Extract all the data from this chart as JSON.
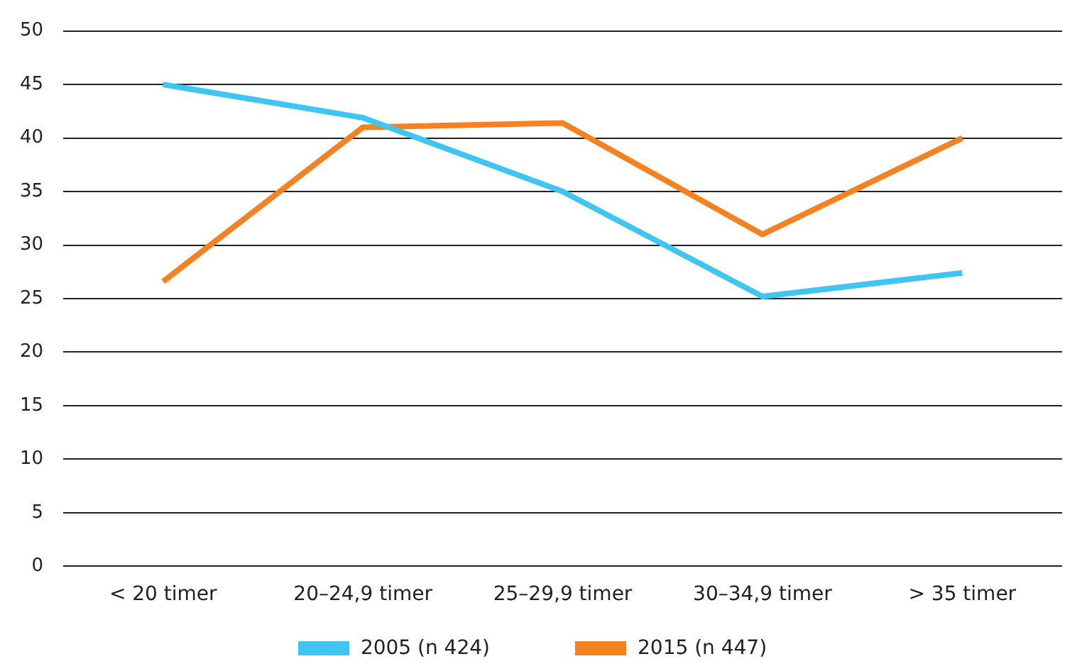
{
  "chart_data": {
    "type": "line",
    "categories": [
      "< 20 timer",
      "20–24,9 timer",
      "25–29,9 timer",
      "30–34,9 timer",
      "> 35 timer"
    ],
    "series": [
      {
        "name": "2005 (n 424)",
        "color": "#3ec6f0",
        "values": [
          45,
          41.9,
          35,
          25.2,
          27.4
        ]
      },
      {
        "name": "2015 (n 447)",
        "color": "#f58220",
        "values": [
          26.6,
          41,
          41.4,
          31,
          40
        ]
      }
    ],
    "ylim": [
      0,
      50
    ],
    "yticks": [
      0,
      5,
      10,
      15,
      20,
      25,
      30,
      35,
      40,
      45,
      50
    ],
    "grid": "y",
    "legend": "bottom",
    "marker": "none",
    "line_style": "solid"
  }
}
